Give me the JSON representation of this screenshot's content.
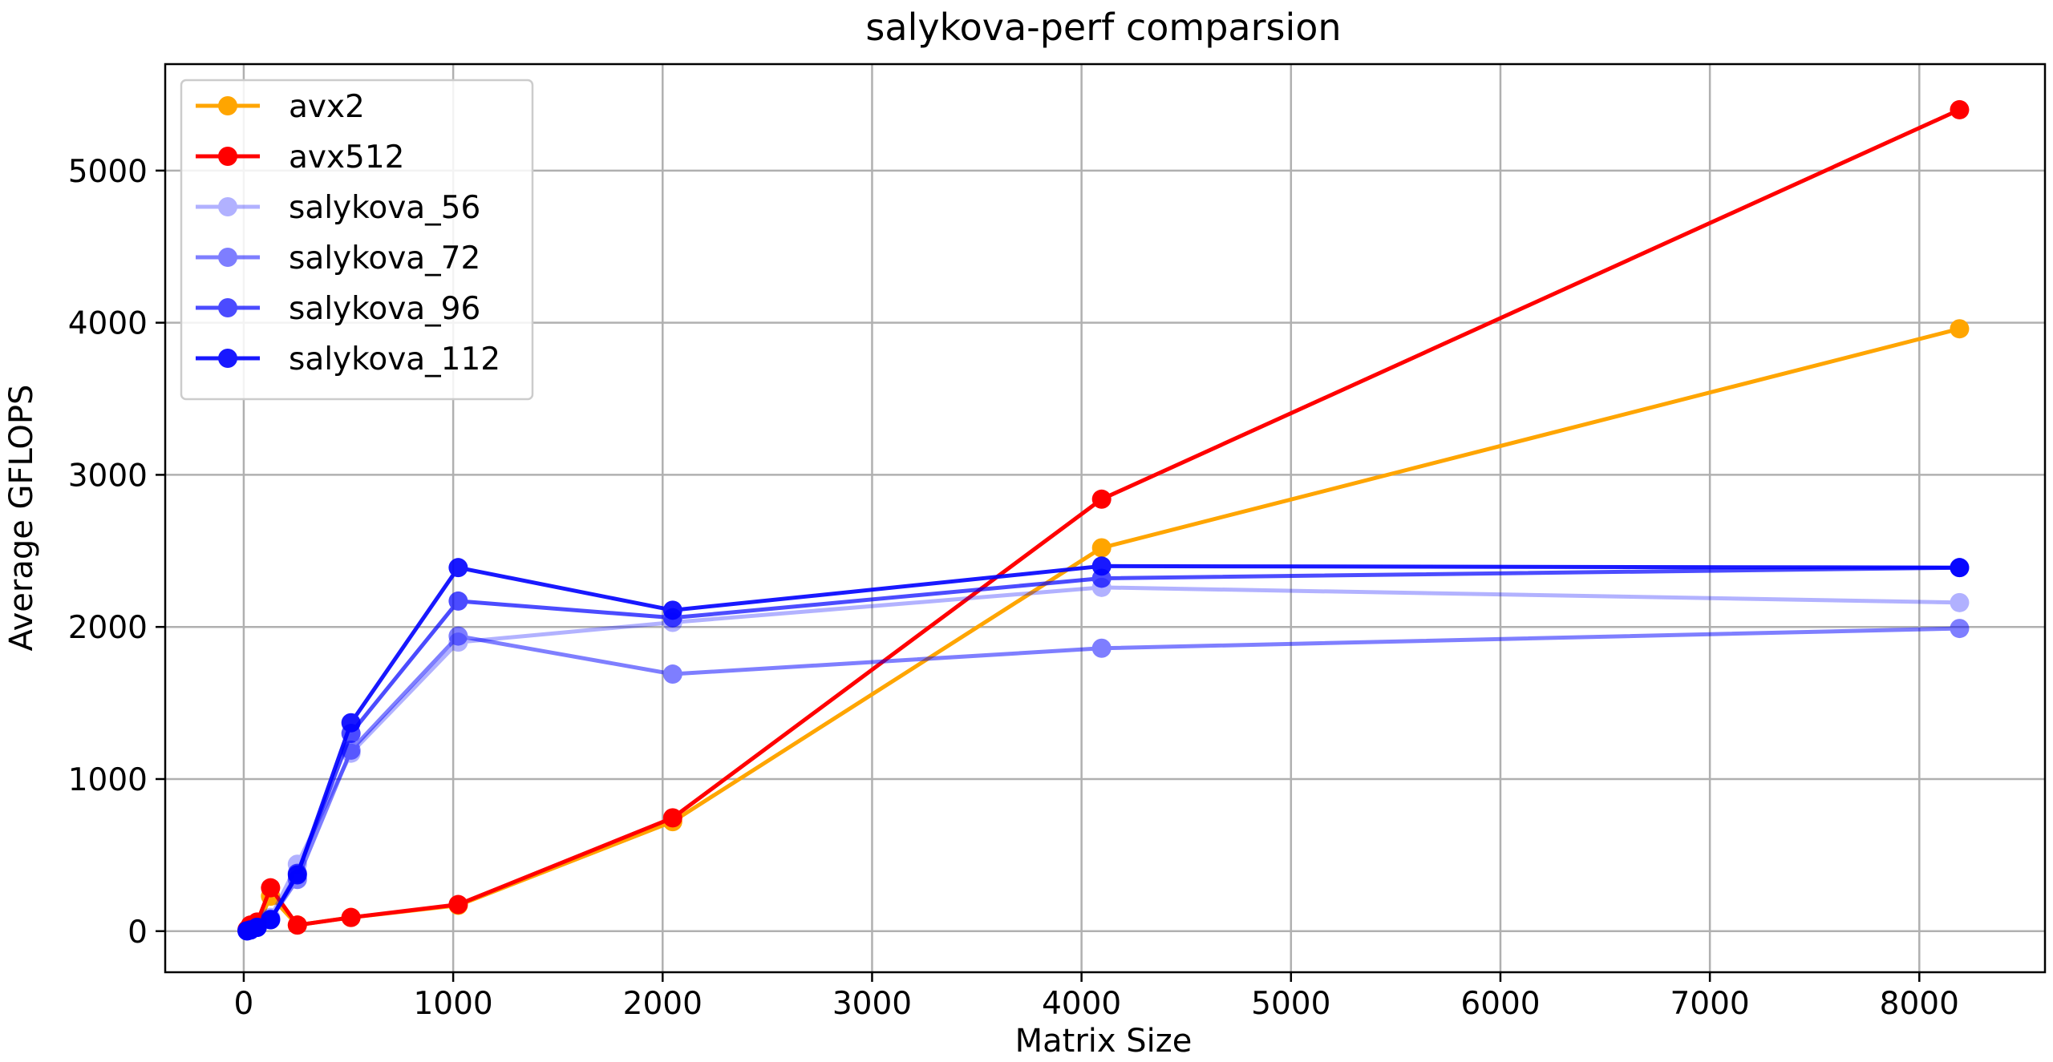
{
  "chart_data": {
    "type": "line",
    "title": "salykova-perf comparsion",
    "xlabel": "Matrix Size",
    "ylabel": "Average GFLOPS",
    "xlim": [
      -375,
      8600
    ],
    "ylim": [
      -270,
      5700
    ],
    "xticks": [
      0,
      1000,
      2000,
      3000,
      4000,
      5000,
      6000,
      7000,
      8000
    ],
    "yticks": [
      0,
      1000,
      2000,
      3000,
      4000,
      5000
    ],
    "grid": true,
    "legend_position": "top-left",
    "series": [
      {
        "name": "avx2",
        "color": "#ffa500",
        "alpha": 1.0,
        "x": [
          16,
          32,
          64,
          128,
          256,
          512,
          1024,
          2048,
          4096,
          8192
        ],
        "y": [
          5,
          15,
          30,
          230,
          40,
          90,
          170,
          720,
          2520,
          3960
        ]
      },
      {
        "name": "avx512",
        "color": "#ff0000",
        "alpha": 1.0,
        "x": [
          16,
          32,
          64,
          128,
          256,
          512,
          1024,
          2048,
          4096,
          8192
        ],
        "y": [
          10,
          40,
          60,
          285,
          40,
          90,
          175,
          745,
          2840,
          5400
        ]
      },
      {
        "name": "salykova_56",
        "color": "#0000ff",
        "alpha": 0.3,
        "x": [
          16,
          32,
          64,
          128,
          256,
          512,
          1024,
          2048,
          4096,
          8192
        ],
        "y": [
          2,
          8,
          25,
          90,
          440,
          1170,
          1900,
          2030,
          2260,
          2160
        ]
      },
      {
        "name": "salykova_72",
        "color": "#0000ff",
        "alpha": 0.5,
        "x": [
          16,
          32,
          64,
          128,
          256,
          512,
          1024,
          2048,
          4096,
          8192
        ],
        "y": [
          2,
          8,
          25,
          80,
          340,
          1190,
          1940,
          1690,
          1860,
          1990
        ]
      },
      {
        "name": "salykova_96",
        "color": "#0000ff",
        "alpha": 0.7,
        "x": [
          16,
          32,
          64,
          128,
          256,
          512,
          1024,
          2048,
          4096,
          8192
        ],
        "y": [
          2,
          8,
          25,
          75,
          380,
          1300,
          2170,
          2060,
          2320,
          2390
        ]
      },
      {
        "name": "salykova_112",
        "color": "#0000ff",
        "alpha": 0.9,
        "x": [
          16,
          32,
          64,
          128,
          256,
          512,
          1024,
          2048,
          4096,
          8192
        ],
        "y": [
          2,
          8,
          25,
          75,
          370,
          1370,
          2390,
          2110,
          2400,
          2390
        ]
      }
    ]
  }
}
